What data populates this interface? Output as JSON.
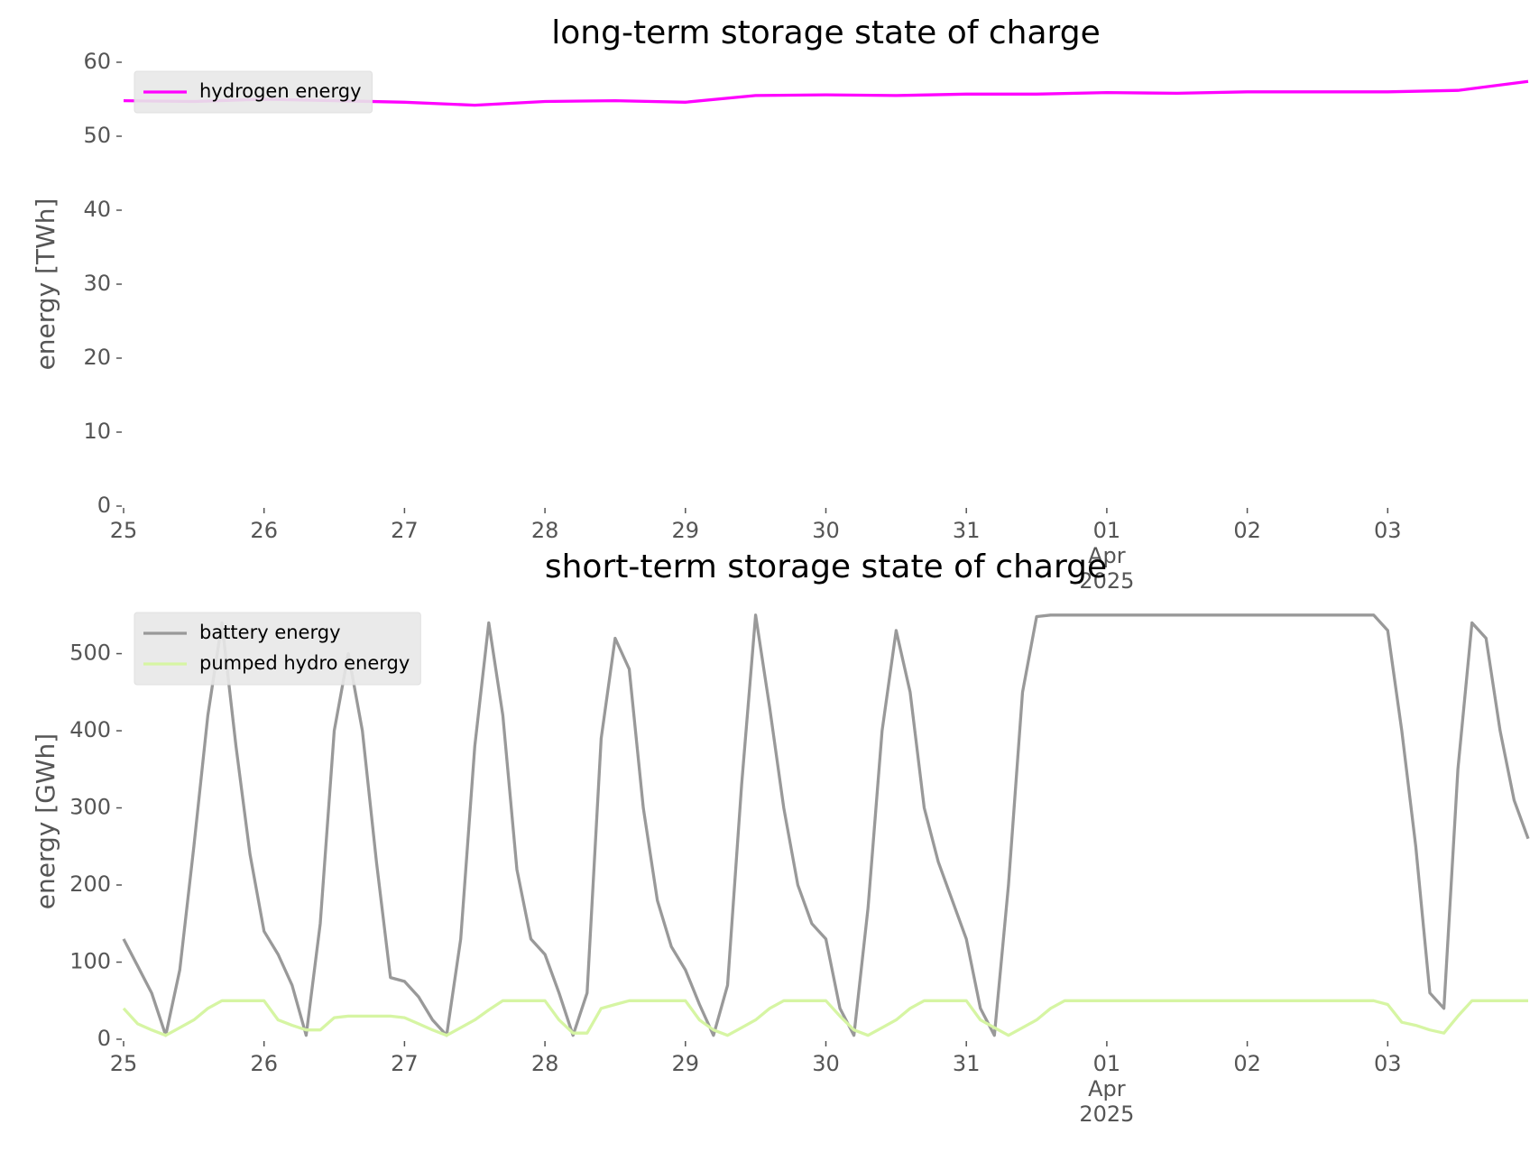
{
  "chart_data": [
    {
      "type": "line",
      "title": "long-term storage state of charge",
      "ylabel": "energy [TWh]",
      "x": [
        0,
        0.5,
        1,
        1.5,
        2,
        2.5,
        3,
        3.5,
        4,
        4.5,
        5,
        5.5,
        6,
        6.5,
        7,
        7.5,
        8,
        8.5,
        9,
        9.5,
        10
      ],
      "xlim": [
        0,
        10
      ],
      "xticks": [
        {
          "value": 0,
          "label": "25"
        },
        {
          "value": 1,
          "label": "26"
        },
        {
          "value": 2,
          "label": "27"
        },
        {
          "value": 3,
          "label": "28"
        },
        {
          "value": 4,
          "label": "29"
        },
        {
          "value": 5,
          "label": "30"
        },
        {
          "value": 6,
          "label": "31"
        },
        {
          "value": 7,
          "label": "01\nApr\n2025"
        },
        {
          "value": 8,
          "label": "02"
        },
        {
          "value": 9,
          "label": "03"
        }
      ],
      "ylim": [
        0,
        60
      ],
      "yticks": [
        0,
        10,
        20,
        30,
        40,
        50,
        60
      ],
      "legend": "upper left",
      "series": [
        {
          "name": "hydrogen energy",
          "color": "#ff00ff",
          "values": [
            54.8,
            54.7,
            55,
            54.8,
            54.6,
            54.2,
            54.7,
            54.8,
            54.6,
            55.5,
            55.6,
            55.5,
            55.7,
            55.7,
            55.9,
            55.8,
            56,
            56,
            56,
            56.2,
            57.4
          ]
        }
      ]
    },
    {
      "type": "line",
      "title": "short-term storage state of charge",
      "ylabel": "energy [GWh]",
      "x": [
        0,
        0.1,
        0.2,
        0.3,
        0.4,
        0.5,
        0.6,
        0.7,
        0.8,
        0.9,
        1,
        1.1,
        1.2,
        1.3,
        1.4,
        1.5,
        1.6,
        1.7,
        1.8,
        1.9,
        2,
        2.1,
        2.2,
        2.3,
        2.4,
        2.5,
        2.6,
        2.7,
        2.8,
        2.9,
        3,
        3.1,
        3.2,
        3.3,
        3.4,
        3.5,
        3.6,
        3.7,
        3.8,
        3.9,
        4,
        4.1,
        4.2,
        4.3,
        4.4,
        4.5,
        4.6,
        4.7,
        4.8,
        4.9,
        5,
        5.1,
        5.2,
        5.3,
        5.4,
        5.5,
        5.6,
        5.7,
        5.8,
        5.9,
        6,
        6.1,
        6.2,
        6.3,
        6.4,
        6.5,
        6.6,
        6.7,
        6.8,
        6.9,
        7,
        7.1,
        7.2,
        7.3,
        7.4,
        7.5,
        7.6,
        7.7,
        7.8,
        7.9,
        8,
        8.1,
        8.2,
        8.3,
        8.4,
        8.5,
        8.6,
        8.7,
        8.8,
        8.9,
        9,
        9.1,
        9.2,
        9.3,
        9.4,
        9.5,
        9.6,
        9.7,
        9.8,
        9.9,
        10
      ],
      "xlim": [
        0,
        10
      ],
      "xticks": [
        {
          "value": 0,
          "label": "25"
        },
        {
          "value": 1,
          "label": "26"
        },
        {
          "value": 2,
          "label": "27"
        },
        {
          "value": 3,
          "label": "28"
        },
        {
          "value": 4,
          "label": "29"
        },
        {
          "value": 5,
          "label": "30"
        },
        {
          "value": 6,
          "label": "31"
        },
        {
          "value": 7,
          "label": "01\nApr\n2025"
        },
        {
          "value": 8,
          "label": "02"
        },
        {
          "value": 9,
          "label": "03"
        }
      ],
      "ylim": [
        0,
        565
      ],
      "yticks": [
        0,
        100,
        200,
        300,
        400,
        500
      ],
      "legend": "upper left",
      "series": [
        {
          "name": "battery energy",
          "color": "#999999",
          "values": [
            130,
            95,
            60,
            5,
            90,
            250,
            420,
            540,
            380,
            240,
            140,
            110,
            70,
            5,
            150,
            400,
            500,
            400,
            230,
            80,
            75,
            55,
            25,
            5,
            130,
            380,
            540,
            420,
            220,
            130,
            110,
            60,
            5,
            60,
            390,
            520,
            480,
            300,
            180,
            120,
            90,
            45,
            5,
            70,
            330,
            550,
            430,
            300,
            200,
            150,
            130,
            40,
            5,
            170,
            400,
            530,
            450,
            300,
            230,
            180,
            130,
            40,
            5,
            200,
            450,
            548,
            550,
            550,
            550,
            550,
            550,
            550,
            550,
            550,
            550,
            550,
            550,
            550,
            550,
            550,
            550,
            550,
            550,
            550,
            550,
            550,
            550,
            550,
            550,
            550,
            530,
            400,
            250,
            60,
            40,
            350,
            540,
            520,
            400,
            310,
            260
          ]
        },
        {
          "name": "pumped hydro energy",
          "color": "#d6f5a3",
          "values": [
            40,
            20,
            12,
            5,
            15,
            25,
            40,
            50,
            50,
            50,
            50,
            25,
            18,
            12,
            12,
            28,
            30,
            30,
            30,
            30,
            28,
            20,
            12,
            5,
            15,
            25,
            38,
            50,
            50,
            50,
            50,
            25,
            8,
            8,
            40,
            45,
            50,
            50,
            50,
            50,
            50,
            25,
            12,
            5,
            15,
            25,
            40,
            50,
            50,
            50,
            50,
            30,
            12,
            5,
            15,
            25,
            40,
            50,
            50,
            50,
            50,
            25,
            15,
            5,
            15,
            25,
            40,
            50,
            50,
            50,
            50,
            50,
            50,
            50,
            50,
            50,
            50,
            50,
            50,
            50,
            50,
            50,
            50,
            50,
            50,
            50,
            50,
            50,
            50,
            50,
            45,
            22,
            18,
            12,
            8,
            30,
            50,
            50,
            50,
            50,
            50
          ]
        }
      ]
    }
  ]
}
